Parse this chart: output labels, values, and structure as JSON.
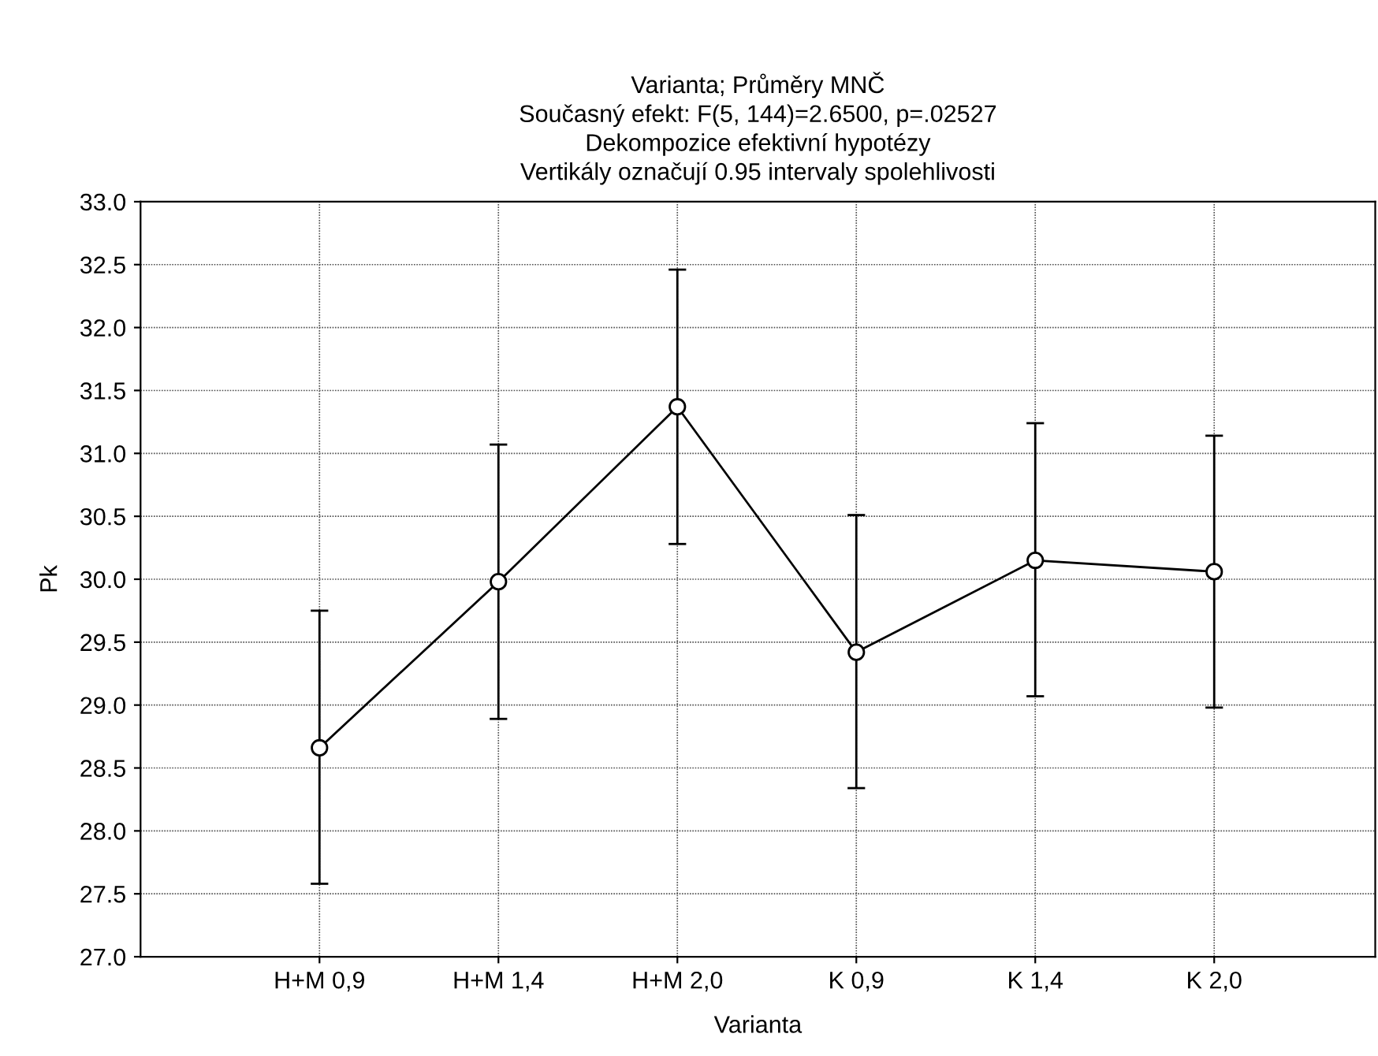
{
  "chart_data": {
    "type": "line",
    "title": "Varianta; Průměry MNČ\nSoučasný efekt: F(5, 144)=2.6500, p=.02527\nDekompozice efektivní hypotézy\nVertikály označují 0.95 intervaly spolehlivosti",
    "xlabel": "Varianta",
    "ylabel": "Pk",
    "categories": [
      "H+M 0,9",
      "H+M 1,4",
      "H+M 2,0",
      "K 0,9",
      "K 1,4",
      "K 2,0"
    ],
    "values": [
      28.66,
      29.98,
      31.37,
      29.42,
      30.15,
      30.06
    ],
    "errors": [
      [
        27.58,
        29.75
      ],
      [
        28.89,
        31.07
      ],
      [
        30.28,
        32.46
      ],
      [
        28.34,
        30.51
      ],
      [
        29.07,
        31.24
      ],
      [
        28.98,
        31.14
      ]
    ],
    "color": "#000000",
    "marker": "circle",
    "line_style": "solid",
    "grid": true,
    "ylim": [
      27.0,
      33.0
    ],
    "yticks": [
      {
        "value": 27.0,
        "label": "27.0"
      },
      {
        "value": 27.5,
        "label": "27.5"
      },
      {
        "value": 28.0,
        "label": "28.0"
      },
      {
        "value": 28.5,
        "label": "28.5"
      },
      {
        "value": 29.0,
        "label": "29.0"
      },
      {
        "value": 29.5,
        "label": "29.5"
      },
      {
        "value": 30.0,
        "label": "30.0"
      },
      {
        "value": 30.5,
        "label": "30.5"
      },
      {
        "value": 31.0,
        "label": "31.0"
      },
      {
        "value": 31.5,
        "label": "31.5"
      },
      {
        "value": 32.0,
        "label": "32.0"
      },
      {
        "value": 32.5,
        "label": "32.5"
      },
      {
        "value": 33.0,
        "label": "33.0"
      }
    ]
  }
}
